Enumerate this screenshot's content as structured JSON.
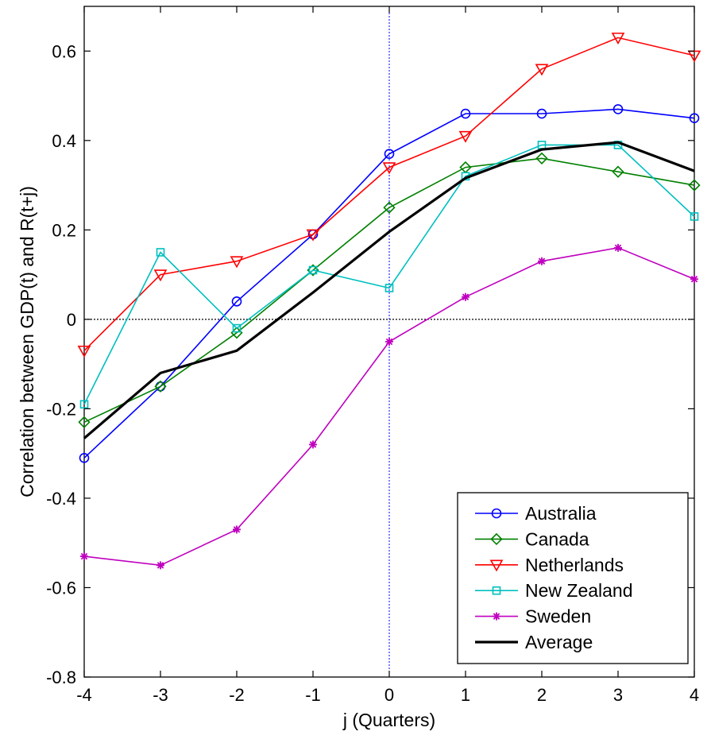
{
  "chart_data": {
    "type": "line",
    "title": "",
    "xlabel": "j (Quarters)",
    "ylabel": "Correlation  between GDP(t) and R(t+j)",
    "x": [
      -4,
      -3,
      -2,
      -1,
      0,
      1,
      2,
      3,
      4
    ],
    "xlim": [
      -4,
      4
    ],
    "ylim": [
      -0.8,
      0.7
    ],
    "xticks": [
      "-4",
      "-3",
      "-2",
      "-1",
      "0",
      "1",
      "2",
      "3",
      "4"
    ],
    "yticks": [
      "-0.8",
      "-0.6",
      "-0.4",
      "-0.2",
      "0",
      "0.2",
      "0.4",
      "0.6"
    ],
    "ytick_values": [
      -0.8,
      -0.6,
      -0.4,
      -0.2,
      0,
      0.2,
      0.4,
      0.6
    ],
    "grid": false,
    "legend_position": "bottom-right",
    "reference_lines": [
      {
        "orientation": "horizontal",
        "value": 0,
        "style": "dotted",
        "color": "#000000"
      },
      {
        "orientation": "vertical",
        "value": 0,
        "style": "dotted",
        "color": "#0000ff"
      }
    ],
    "series": [
      {
        "name": "Australia",
        "color": "#0000ff",
        "marker": "circle",
        "values": [
          -0.31,
          -0.15,
          0.04,
          0.19,
          0.37,
          0.46,
          0.46,
          0.47,
          0.45
        ]
      },
      {
        "name": "Canada",
        "color": "#008000",
        "marker": "diamond",
        "values": [
          -0.23,
          -0.15,
          -0.03,
          0.11,
          0.25,
          0.34,
          0.36,
          0.33,
          0.3
        ]
      },
      {
        "name": "Netherlands",
        "color": "#ff0000",
        "marker": "triangle-down",
        "values": [
          -0.07,
          0.1,
          0.13,
          0.19,
          0.34,
          0.41,
          0.56,
          0.63,
          0.59
        ]
      },
      {
        "name": "New Zealand",
        "color": "#00bfbf",
        "marker": "square",
        "values": [
          -0.19,
          0.15,
          -0.02,
          0.11,
          0.07,
          0.32,
          0.39,
          0.39,
          0.23
        ]
      },
      {
        "name": "Sweden",
        "color": "#bf00bf",
        "marker": "asterisk",
        "values": [
          -0.53,
          -0.55,
          -0.47,
          -0.28,
          -0.05,
          0.05,
          0.13,
          0.16,
          0.09
        ]
      },
      {
        "name": "Average",
        "color": "#000000",
        "marker": "none",
        "values": [
          -0.266,
          -0.12,
          -0.07,
          0.06,
          0.196,
          0.316,
          0.38,
          0.396,
          0.332
        ]
      }
    ]
  }
}
